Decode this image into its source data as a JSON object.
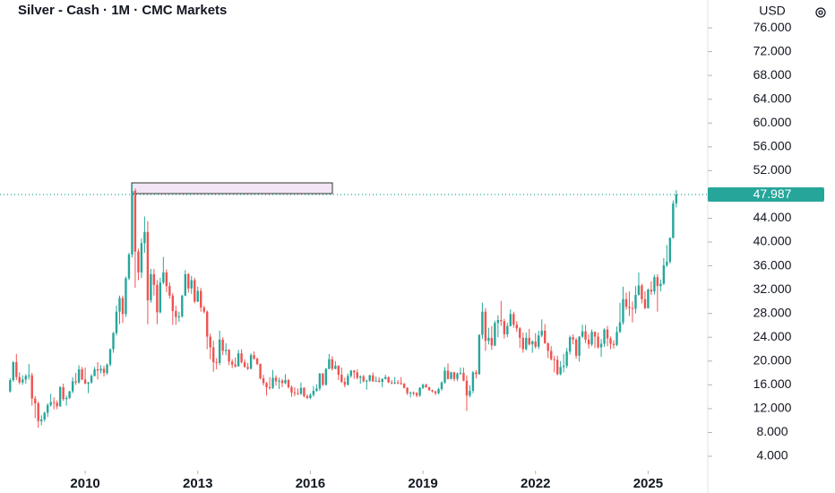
{
  "chart_data": {
    "type": "candlestick",
    "title": "Silver - Cash · 1M · CMC Markets",
    "y_axis_label": "USD",
    "up_color": "#26a69a",
    "down_color": "#ef5350",
    "last_price": 47.987,
    "xlim": [
      2007.73,
      2026.59
    ],
    "xticks": [
      2010,
      2013,
      2016,
      2019,
      2022,
      2025
    ],
    "ylim": [
      1.59,
      80.68
    ],
    "yticks": [
      {
        "value": 4,
        "label": "4.000"
      },
      {
        "value": 8,
        "label": "8.000"
      },
      {
        "value": 12,
        "label": "12.000"
      },
      {
        "value": 16,
        "label": "16.000"
      },
      {
        "value": 20,
        "label": "20.000"
      },
      {
        "value": 24,
        "label": "24.000"
      },
      {
        "value": 28,
        "label": "28.000"
      },
      {
        "value": 32,
        "label": "32.000"
      },
      {
        "value": 36,
        "label": "36.000"
      },
      {
        "value": 40,
        "label": "40.000"
      },
      {
        "value": 44,
        "label": "44.000"
      },
      {
        "value": 52,
        "label": "52.000"
      },
      {
        "value": 56,
        "label": "56.000"
      },
      {
        "value": 60,
        "label": "60.000"
      },
      {
        "value": 64,
        "label": "64.000"
      },
      {
        "value": 68,
        "label": "68.000"
      },
      {
        "value": 72,
        "label": "72.000"
      },
      {
        "value": 76,
        "label": "76.000"
      }
    ],
    "x": [
      2008,
      2008.083,
      2008.167,
      2008.25,
      2008.333,
      2008.417,
      2008.5,
      2008.583,
      2008.667,
      2008.75,
      2008.833,
      2008.917,
      2009,
      2009.083,
      2009.167,
      2009.25,
      2009.333,
      2009.417,
      2009.5,
      2009.583,
      2009.667,
      2009.75,
      2009.833,
      2009.917,
      2010,
      2010.083,
      2010.167,
      2010.25,
      2010.333,
      2010.417,
      2010.5,
      2010.583,
      2010.667,
      2010.75,
      2010.833,
      2010.917,
      2011,
      2011.083,
      2011.167,
      2011.25,
      2011.333,
      2011.417,
      2011.5,
      2011.583,
      2011.667,
      2011.75,
      2011.833,
      2011.917,
      2012,
      2012.083,
      2012.167,
      2012.25,
      2012.333,
      2012.417,
      2012.5,
      2012.583,
      2012.667,
      2012.75,
      2012.833,
      2012.917,
      2013,
      2013.083,
      2013.167,
      2013.25,
      2013.333,
      2013.417,
      2013.5,
      2013.583,
      2013.667,
      2013.75,
      2013.833,
      2013.917,
      2014,
      2014.083,
      2014.167,
      2014.25,
      2014.333,
      2014.417,
      2014.5,
      2014.583,
      2014.667,
      2014.75,
      2014.833,
      2014.917,
      2015,
      2015.083,
      2015.167,
      2015.25,
      2015.333,
      2015.417,
      2015.5,
      2015.583,
      2015.667,
      2015.75,
      2015.833,
      2015.917,
      2016,
      2016.083,
      2016.167,
      2016.25,
      2016.333,
      2016.417,
      2016.5,
      2016.583,
      2016.667,
      2016.75,
      2016.833,
      2016.917,
      2017,
      2017.083,
      2017.167,
      2017.25,
      2017.333,
      2017.417,
      2017.5,
      2017.583,
      2017.667,
      2017.75,
      2017.833,
      2017.917,
      2018,
      2018.083,
      2018.167,
      2018.25,
      2018.333,
      2018.417,
      2018.5,
      2018.583,
      2018.667,
      2018.75,
      2018.833,
      2018.917,
      2019,
      2019.083,
      2019.167,
      2019.25,
      2019.333,
      2019.417,
      2019.5,
      2019.583,
      2019.667,
      2019.75,
      2019.833,
      2019.917,
      2020,
      2020.083,
      2020.167,
      2020.25,
      2020.333,
      2020.417,
      2020.5,
      2020.583,
      2020.667,
      2020.75,
      2020.833,
      2020.917,
      2021,
      2021.083,
      2021.167,
      2021.25,
      2021.333,
      2021.417,
      2021.5,
      2021.583,
      2021.667,
      2021.75,
      2021.833,
      2021.917,
      2022,
      2022.083,
      2022.167,
      2022.25,
      2022.333,
      2022.417,
      2022.5,
      2022.583,
      2022.667,
      2022.75,
      2022.833,
      2022.917,
      2023,
      2023.083,
      2023.167,
      2023.25,
      2023.333,
      2023.417,
      2023.5,
      2023.583,
      2023.667,
      2023.75,
      2023.833,
      2023.917,
      2024,
      2024.083,
      2024.167,
      2024.25,
      2024.333,
      2024.417,
      2024.5,
      2024.583,
      2024.667,
      2024.75,
      2024.833,
      2024.917,
      2025,
      2025.083,
      2025.167,
      2025.25,
      2025.333,
      2025.417,
      2025.5,
      2025.583,
      2025.667,
      2025.75
    ],
    "open": [
      14.9,
      16.8,
      19.8,
      17.3,
      16.4,
      16.9,
      17.5,
      17.6,
      13.7,
      12.9,
      9.9,
      10.2,
      11.3,
      12.6,
      13.1,
      13.0,
      12.4,
      15.6,
      13.6,
      13.8,
      14.9,
      16.6,
      16.4,
      18.6,
      16.9,
      16.2,
      16.4,
      17.5,
      18.6,
      18.4,
      18.7,
      18.0,
      19.4,
      22.0,
      24.7,
      28.3,
      30.6,
      27.9,
      33.9,
      37.9,
      48.6,
      38.4,
      34.9,
      39.8,
      41.7,
      30.2,
      34.6,
      32.8,
      28.2,
      33.2,
      34.9,
      32.6,
      31.0,
      28.4,
      27.4,
      27.5,
      31.0,
      34.6,
      32.2,
      33.6,
      30.0,
      31.8,
      29.0,
      28.3,
      24.1,
      22.3,
      19.8,
      19.7,
      23.6,
      21.7,
      21.9,
      19.9,
      19.4,
      19.1,
      21.3,
      19.8,
      19.0,
      18.7,
      21.0,
      20.4,
      19.5,
      17.1,
      16.3,
      15.6,
      15.5,
      17.2,
      16.6,
      16.7,
      16.3,
      16.8,
      15.6,
      14.7,
      14.6,
      14.5,
      15.5,
      14.1,
      13.8,
      14.3,
      15.0,
      15.4,
      17.9,
      16.0,
      18.7,
      20.3,
      18.7,
      19.2,
      17.7,
      16.5,
      16.0,
      17.5,
      18.4,
      18.1,
      17.2,
      17.4,
      16.6,
      16.7,
      17.6,
      16.6,
      16.7,
      16.5,
      17.0,
      17.3,
      16.4,
      16.3,
      16.4,
      16.3,
      16.2,
      15.5,
      14.6,
      14.7,
      14.6,
      14.2,
      15.5,
      16.0,
      15.6,
      15.1,
      14.9,
      14.6,
      15.3,
      16.4,
      18.4,
      17.0,
      18.1,
      17.0,
      17.9,
      18.0,
      16.7,
      14.2,
      15.0,
      18.1,
      17.8,
      24.4,
      28.3,
      23.4,
      23.9,
      22.6,
      26.4,
      26.9,
      26.7,
      24.5,
      25.9,
      27.9,
      26.1,
      25.5,
      23.9,
      22.0,
      23.9,
      22.8,
      23.3,
      22.4,
      24.3,
      25.1,
      23.0,
      21.7,
      20.3,
      20.2,
      17.8,
      19.0,
      19.2,
      21.6,
      24.0,
      23.6,
      20.9,
      24.1,
      25.0,
      23.6,
      22.8,
      24.9,
      24.1,
      22.3,
      22.9,
      25.3,
      23.8,
      22.9,
      22.7,
      24.9,
      26.5,
      30.4,
      29.1,
      28.9,
      28.8,
      31.1,
      32.7,
      30.4,
      28.9,
      32.0,
      31.7,
      34.1,
      32.6,
      33.0,
      36.1,
      36.7,
      40.7,
      46.5
    ],
    "high": [
      17.1,
      20.0,
      21.2,
      18.1,
      17.6,
      17.8,
      19.5,
      18.0,
      14.1,
      13.2,
      10.9,
      11.5,
      12.9,
      14.5,
      13.9,
      13.4,
      15.8,
      16.2,
      14.2,
      15.0,
      17.3,
      18.0,
      19.3,
      19.0,
      18.9,
      16.5,
      17.8,
      19.0,
      19.8,
      19.3,
      19.2,
      19.6,
      22.1,
      24.9,
      29.3,
      31.0,
      31.0,
      34.2,
      38.2,
      49.8,
      49.0,
      38.9,
      40.6,
      44.3,
      43.5,
      35.5,
      35.5,
      33.6,
      34.0,
      37.5,
      35.4,
      33.2,
      31.4,
      29.3,
      28.3,
      31.1,
      35.3,
      34.8,
      34.3,
      34.0,
      32.5,
      32.3,
      29.3,
      28.5,
      24.6,
      23.4,
      20.5,
      25.1,
      24.0,
      23.0,
      22.0,
      20.3,
      20.6,
      21.9,
      22.0,
      20.3,
      19.7,
      21.3,
      21.6,
      20.6,
      19.6,
      17.7,
      16.5,
      17.3,
      18.5,
      17.6,
      17.2,
      17.0,
      17.8,
      17.0,
      15.9,
      15.6,
      15.4,
      16.4,
      15.6,
      14.4,
      14.6,
      15.8,
      16.1,
      18.0,
      18.0,
      18.8,
      21.2,
      20.8,
      20.0,
      19.3,
      18.9,
      17.2,
      17.9,
      18.5,
      18.5,
      18.6,
      17.6,
      17.7,
      16.9,
      17.7,
      18.1,
      17.4,
      17.3,
      17.1,
      17.7,
      17.4,
      16.8,
      17.3,
      16.8,
      17.3,
      16.3,
      15.6,
      14.9,
      14.9,
      14.8,
      15.6,
      16.2,
      16.2,
      15.7,
      15.2,
      15.0,
      15.5,
      16.6,
      19.0,
      19.6,
      18.2,
      18.2,
      18.1,
      18.9,
      18.9,
      17.6,
      15.9,
      18.3,
      18.5,
      24.5,
      29.8,
      28.9,
      25.6,
      25.9,
      26.8,
      27.7,
      30.1,
      27.1,
      26.4,
      28.7,
      28.3,
      26.7,
      25.7,
      24.8,
      24.8,
      25.4,
      23.5,
      24.7,
      25.1,
      27.0,
      26.2,
      23.1,
      22.5,
      20.9,
      20.9,
      20.0,
      21.2,
      22.2,
      24.3,
      24.5,
      23.9,
      24.2,
      26.1,
      26.1,
      24.5,
      25.3,
      25.0,
      24.8,
      23.7,
      25.5,
      25.9,
      24.1,
      23.5,
      25.8,
      29.8,
      32.5,
      31.5,
      31.7,
      30.0,
      32.6,
      34.9,
      33.0,
      31.7,
      32.2,
      33.4,
      34.5,
      34.6,
      33.7,
      37.3,
      39.5,
      40.8,
      47.0,
      48.7
    ],
    "low": [
      14.7,
      16.5,
      16.8,
      16.1,
      16.0,
      16.2,
      16.9,
      12.5,
      10.4,
      8.8,
      9.2,
      9.8,
      10.6,
      12.3,
      11.9,
      11.9,
      12.3,
      13.3,
      12.5,
      13.6,
      14.6,
      16.0,
      16.2,
      16.8,
      16.1,
      14.6,
      16.2,
      17.4,
      16.9,
      17.9,
      17.4,
      17.7,
      19.1,
      21.4,
      24.3,
      26.2,
      26.4,
      27.4,
      33.6,
      37.4,
      32.3,
      33.6,
      34.0,
      38.2,
      26.2,
      29.8,
      31.0,
      26.2,
      28.0,
      32.9,
      31.6,
      30.5,
      26.1,
      26.1,
      26.6,
      27.3,
      30.9,
      31.5,
      31.3,
      29.7,
      29.9,
      28.3,
      28.0,
      22.0,
      20.3,
      18.2,
      18.6,
      19.3,
      21.0,
      21.0,
      19.3,
      18.8,
      18.9,
      19.1,
      19.6,
      18.9,
      18.5,
      18.6,
      20.2,
      19.3,
      16.9,
      15.9,
      14.2,
      15.2,
      15.3,
      15.9,
      15.3,
      15.6,
      16.1,
      15.4,
      14.0,
      14.1,
      14.3,
      14.3,
      13.9,
      13.6,
      13.6,
      14.0,
      14.8,
      15.0,
      15.8,
      15.9,
      18.6,
      18.4,
      18.6,
      16.8,
      16.3,
      15.6,
      15.9,
      17.2,
      17.0,
      16.9,
      16.2,
      16.4,
      15.2,
      16.5,
      16.5,
      16.5,
      16.4,
      15.6,
      16.9,
      16.3,
      16.1,
      16.1,
      16.1,
      16.0,
      15.4,
      14.3,
      13.9,
      14.2,
      13.9,
      14.0,
      15.3,
      15.5,
      15.0,
      14.7,
      14.3,
      14.4,
      15.0,
      16.2,
      16.9,
      16.9,
      16.6,
      16.6,
      17.7,
      16.6,
      11.6,
      13.9,
      14.6,
      17.1,
      17.7,
      23.7,
      21.7,
      22.8,
      21.9,
      22.5,
      24.0,
      25.9,
      23.8,
      24.0,
      25.8,
      25.6,
      24.9,
      22.2,
      21.4,
      21.8,
      22.6,
      21.4,
      22.1,
      22.0,
      24.0,
      22.9,
      20.5,
      20.1,
      18.1,
      17.6,
      17.6,
      18.1,
      18.8,
      21.1,
      22.8,
      20.4,
      19.9,
      23.9,
      23.0,
      22.1,
      22.5,
      22.2,
      22.1,
      20.7,
      22.4,
      22.5,
      22.0,
      22.1,
      22.5,
      24.7,
      26.1,
      28.6,
      27.6,
      26.5,
      28.0,
      31.0,
      29.7,
      28.7,
      28.8,
      31.1,
      31.2,
      28.3,
      31.7,
      32.8,
      35.8,
      36.4,
      40.6,
      45.8
    ],
    "close": [
      16.8,
      19.8,
      17.3,
      16.4,
      16.9,
      17.5,
      17.6,
      13.7,
      12.9,
      9.9,
      10.2,
      11.3,
      12.6,
      13.1,
      13.0,
      12.4,
      15.6,
      13.6,
      13.8,
      14.9,
      16.6,
      16.4,
      18.6,
      16.9,
      16.2,
      16.4,
      17.5,
      18.6,
      18.4,
      18.7,
      18.0,
      19.4,
      22.0,
      24.7,
      28.3,
      30.6,
      27.9,
      33.9,
      37.9,
      48.6,
      38.4,
      34.9,
      39.8,
      41.7,
      30.2,
      34.6,
      32.8,
      28.2,
      33.2,
      34.9,
      32.6,
      31.0,
      28.4,
      27.4,
      27.5,
      31.0,
      34.6,
      32.2,
      33.6,
      30.0,
      31.8,
      29.0,
      28.3,
      24.1,
      22.3,
      19.8,
      19.7,
      23.6,
      21.7,
      21.9,
      19.9,
      19.4,
      19.1,
      21.3,
      19.8,
      19.0,
      18.7,
      21.0,
      20.4,
      19.5,
      17.1,
      16.3,
      15.6,
      15.5,
      17.2,
      16.6,
      16.7,
      16.3,
      16.8,
      15.6,
      14.7,
      14.6,
      14.5,
      15.5,
      14.1,
      13.8,
      14.3,
      15.0,
      15.4,
      17.9,
      16.0,
      18.7,
      20.3,
      18.7,
      19.2,
      17.7,
      16.5,
      16.0,
      17.5,
      18.4,
      18.1,
      17.2,
      17.4,
      16.6,
      16.7,
      17.6,
      16.6,
      16.7,
      16.5,
      17.0,
      17.3,
      16.4,
      16.3,
      16.4,
      16.3,
      16.2,
      15.5,
      14.6,
      14.7,
      14.6,
      14.2,
      15.5,
      16.0,
      15.6,
      15.1,
      14.9,
      14.6,
      15.3,
      16.4,
      18.4,
      17.0,
      18.1,
      17.0,
      17.9,
      18.0,
      16.7,
      14.2,
      15.0,
      18.1,
      17.8,
      24.4,
      28.3,
      23.4,
      23.9,
      22.6,
      26.4,
      26.9,
      26.7,
      24.5,
      25.9,
      27.9,
      26.1,
      25.5,
      23.9,
      22.0,
      23.9,
      22.8,
      23.3,
      22.4,
      24.3,
      25.1,
      23.0,
      21.7,
      20.3,
      20.2,
      17.8,
      19.0,
      19.2,
      21.6,
      24.0,
      23.6,
      20.9,
      24.1,
      25.0,
      23.6,
      22.8,
      24.9,
      24.1,
      22.3,
      22.9,
      25.3,
      23.8,
      22.9,
      22.7,
      24.9,
      26.5,
      30.4,
      29.1,
      28.9,
      28.8,
      31.1,
      32.7,
      30.4,
      28.9,
      32.0,
      31.7,
      34.1,
      32.6,
      33.0,
      36.1,
      36.7,
      40.7,
      46.5,
      47.987
    ]
  }
}
